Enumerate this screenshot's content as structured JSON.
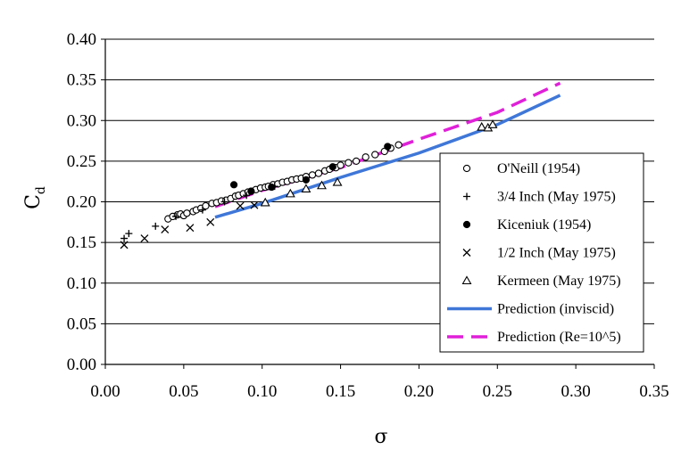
{
  "chart_data": {
    "type": "scatter",
    "xlabel": "σ",
    "ylabel": "C",
    "ylabel_sub": "d",
    "xlim": [
      0.0,
      0.35
    ],
    "ylim": [
      0.0,
      0.4
    ],
    "x_ticks": [
      "0.00",
      "0.05",
      "0.10",
      "0.15",
      "0.20",
      "0.25",
      "0.30",
      "0.35"
    ],
    "y_ticks": [
      "0.00",
      "0.05",
      "0.10",
      "0.15",
      "0.20",
      "0.25",
      "0.30",
      "0.35",
      "0.40"
    ],
    "grid": "horizontal",
    "legend_placement": "bottom-right",
    "series": [
      {
        "name": "O'Neill (1954)",
        "marker": "circle-open",
        "color": "#000000",
        "x": [
          0.04,
          0.043,
          0.046,
          0.048,
          0.05,
          0.052,
          0.056,
          0.058,
          0.061,
          0.064,
          0.068,
          0.071,
          0.074,
          0.077,
          0.08,
          0.083,
          0.085,
          0.088,
          0.091,
          0.093,
          0.096,
          0.099,
          0.102,
          0.104,
          0.107,
          0.11,
          0.113,
          0.116,
          0.119,
          0.122,
          0.125,
          0.128,
          0.132,
          0.136,
          0.14,
          0.143,
          0.147,
          0.15,
          0.155,
          0.16,
          0.166,
          0.172,
          0.178,
          0.182,
          0.187
        ],
        "y": [
          0.179,
          0.182,
          0.184,
          0.185,
          0.183,
          0.186,
          0.188,
          0.19,
          0.192,
          0.195,
          0.198,
          0.199,
          0.201,
          0.202,
          0.204,
          0.207,
          0.208,
          0.21,
          0.212,
          0.213,
          0.215,
          0.217,
          0.218,
          0.219,
          0.221,
          0.222,
          0.224,
          0.225,
          0.227,
          0.228,
          0.229,
          0.231,
          0.233,
          0.235,
          0.238,
          0.24,
          0.242,
          0.245,
          0.248,
          0.25,
          0.255,
          0.258,
          0.262,
          0.266,
          0.27
        ]
      },
      {
        "name": "3/4 Inch (May 1975)",
        "marker": "plus",
        "color": "#000000",
        "x": [
          0.012,
          0.015,
          0.032,
          0.045,
          0.062,
          0.076,
          0.09,
          0.108
        ],
        "y": [
          0.155,
          0.161,
          0.17,
          0.182,
          0.19,
          0.2,
          0.208,
          0.219
        ]
      },
      {
        "name": "Kiceniuk (1954)",
        "marker": "circle-filled",
        "color": "#000000",
        "x": [
          0.082,
          0.093,
          0.106,
          0.128,
          0.145,
          0.18
        ],
        "y": [
          0.221,
          0.213,
          0.218,
          0.227,
          0.243,
          0.268
        ]
      },
      {
        "name": "1/2 Inch (May 1975)",
        "marker": "x",
        "color": "#000000",
        "x": [
          0.012,
          0.025,
          0.038,
          0.054,
          0.067,
          0.086,
          0.095
        ],
        "y": [
          0.147,
          0.155,
          0.166,
          0.168,
          0.175,
          0.195,
          0.196
        ]
      },
      {
        "name": "Kermeen (May 1975)",
        "marker": "triangle-open",
        "color": "#000000",
        "x": [
          0.102,
          0.118,
          0.128,
          0.138,
          0.148,
          0.24,
          0.244,
          0.247
        ],
        "y": [
          0.199,
          0.21,
          0.216,
          0.22,
          0.224,
          0.292,
          0.291,
          0.295
        ]
      },
      {
        "name": "Prediction (inviscid)",
        "marker": "line",
        "color": "#3f77d8",
        "x": [
          0.07,
          0.1,
          0.15,
          0.2,
          0.25,
          0.29
        ],
        "y": [
          0.181,
          0.198,
          0.23,
          0.26,
          0.295,
          0.331
        ]
      },
      {
        "name": "Prediction (Re=10^5)",
        "marker": "dashed-line",
        "color": "#e020d8",
        "x": [
          0.07,
          0.1,
          0.15,
          0.2,
          0.25,
          0.29
        ],
        "y": [
          0.194,
          0.214,
          0.242,
          0.277,
          0.31,
          0.346
        ]
      }
    ]
  }
}
